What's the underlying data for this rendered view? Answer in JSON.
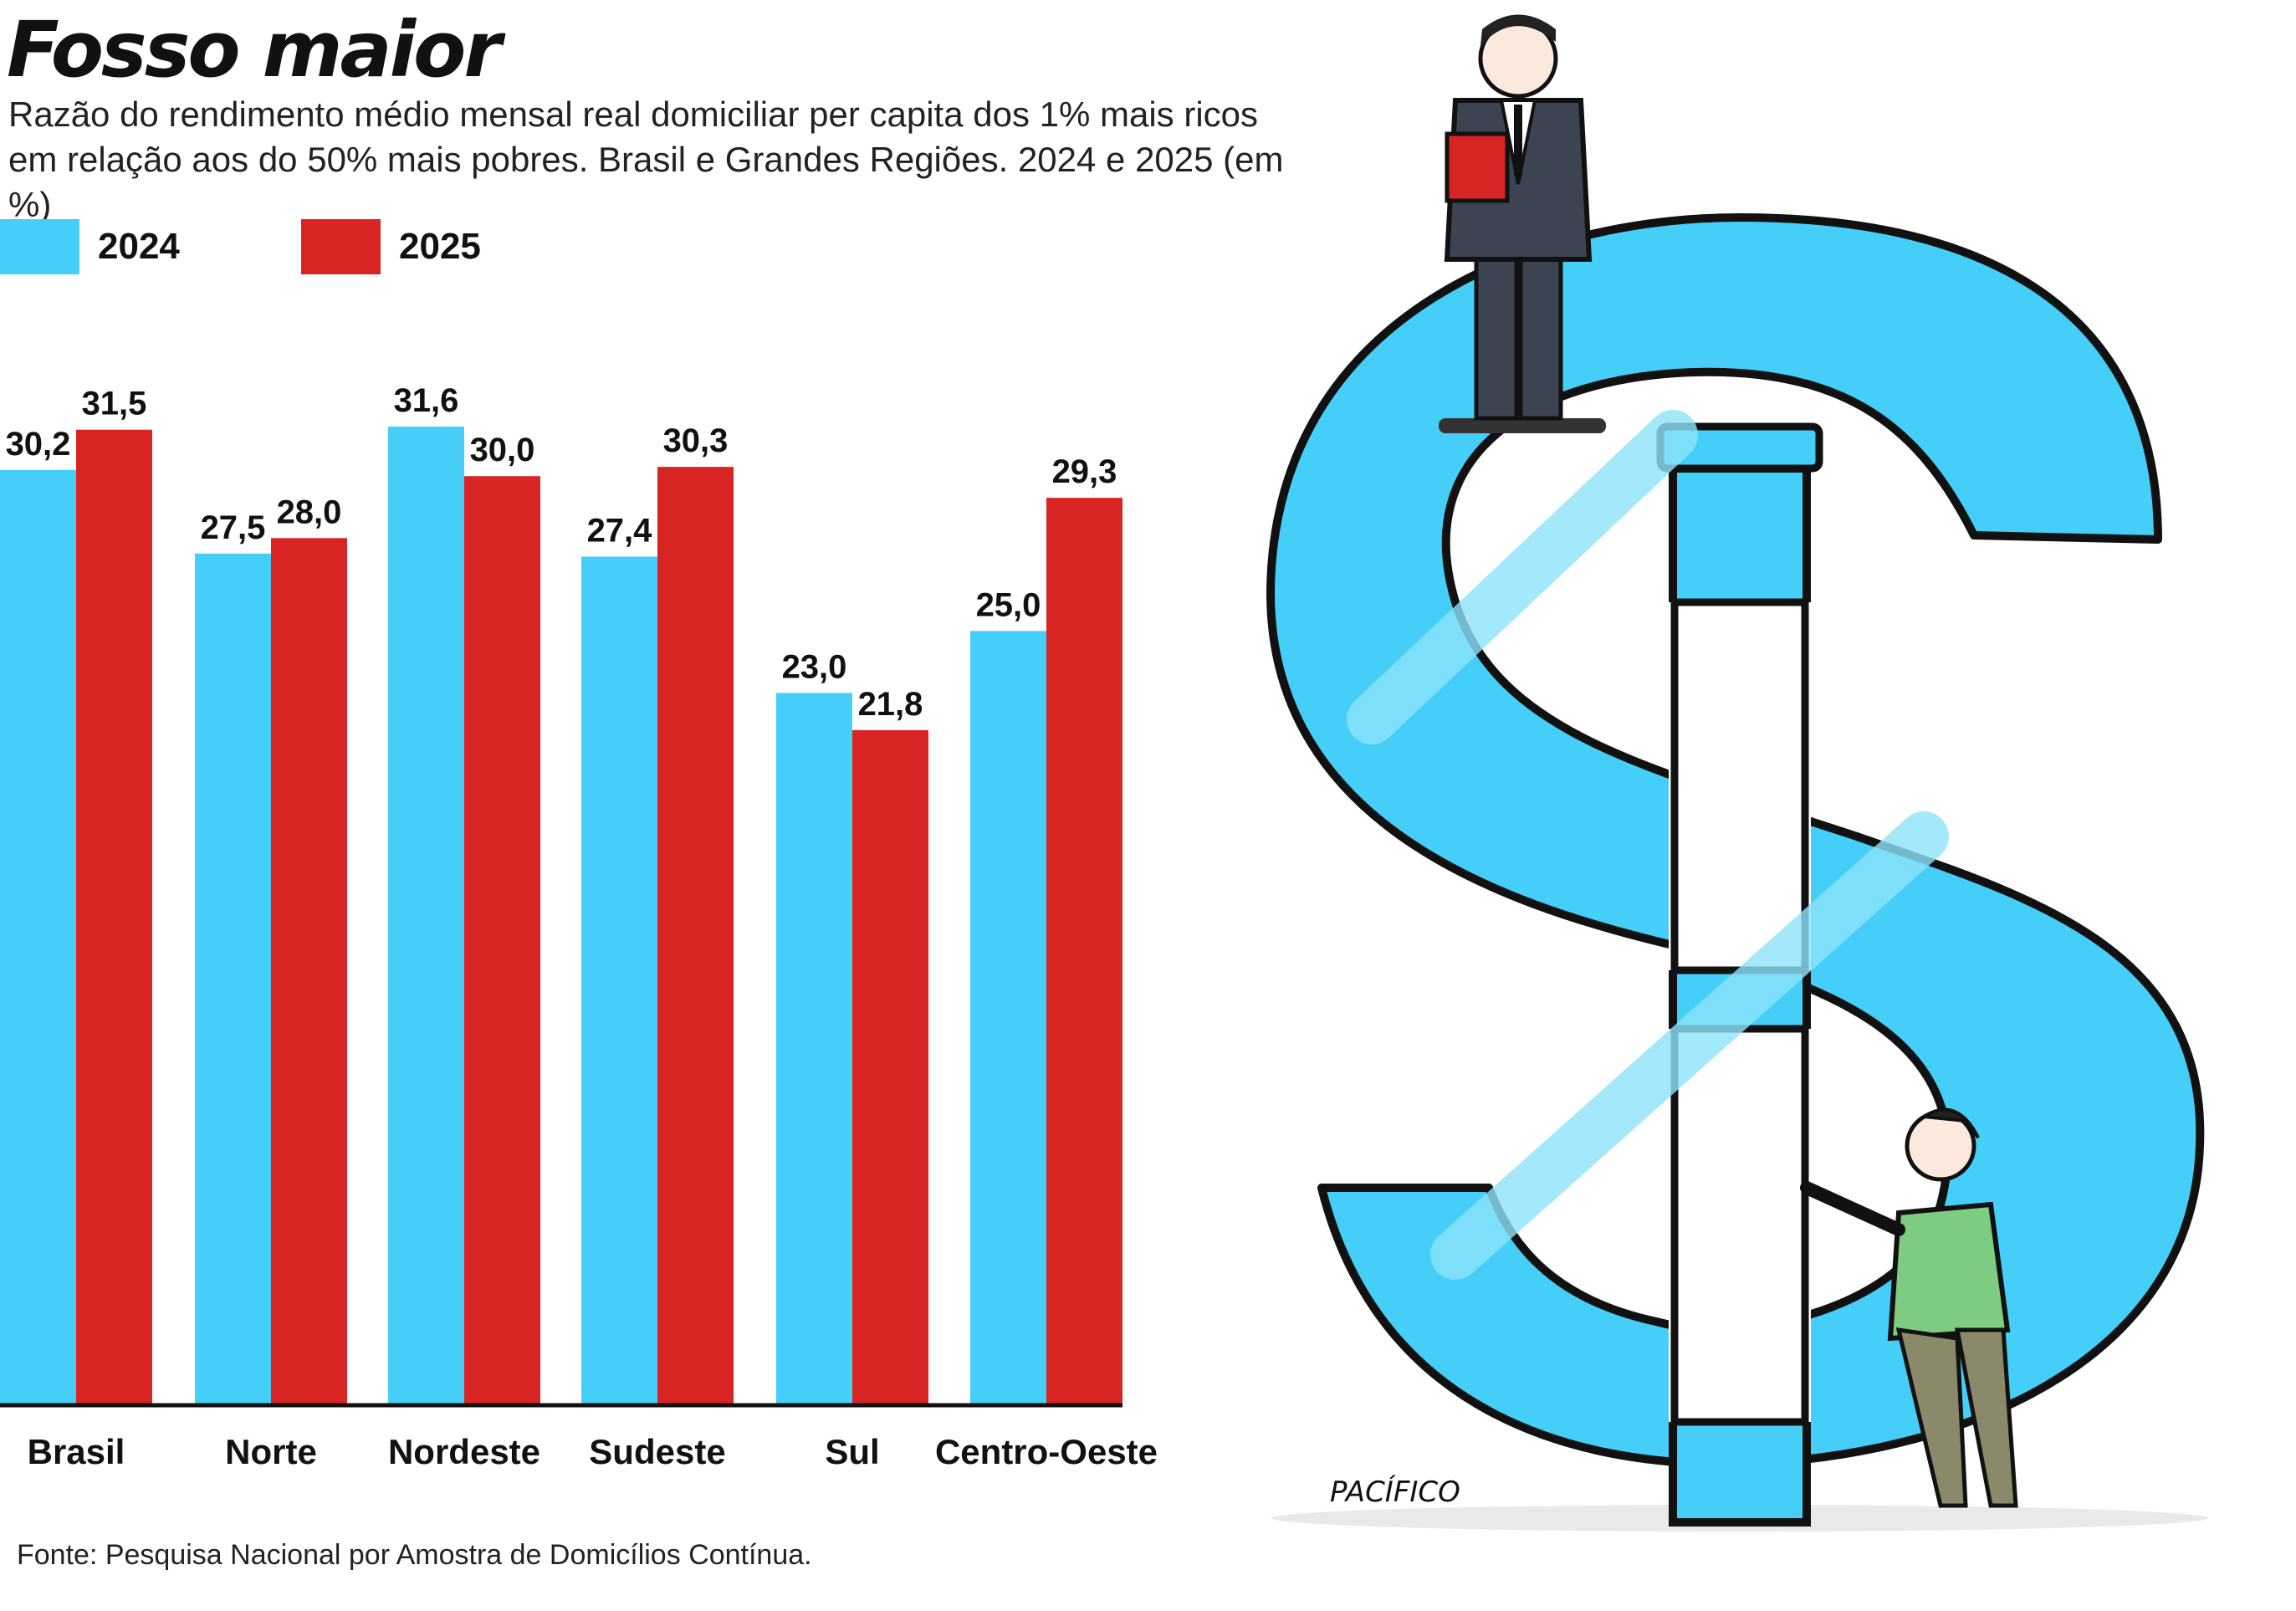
{
  "title": "Fosso maior",
  "subtitle_line1": "Razão do rendimento médio mensal real domiciliar per capita dos 1% mais ricos",
  "subtitle_line2": "em relação aos do 50% mais pobres. Brasil e Grandes Regiões. 2024 e 2025 (em %)",
  "source": "Fonte: Pesquisa Nacional por Amostra de Domicílios Contínua.",
  "cartoon_signature": "PACÍFICO",
  "colors": {
    "series_2024": "#45cff8",
    "series_2025": "#d92424",
    "axis": "#111111"
  },
  "chart_data": {
    "type": "bar",
    "categories": [
      "Brasil",
      "Norte",
      "Nordeste",
      "Sudeste",
      "Sul",
      "Centro-Oeste"
    ],
    "series": [
      {
        "name": "2024",
        "values": [
          30.2,
          27.5,
          31.6,
          27.4,
          23.0,
          25.0
        ],
        "labels": [
          "30,2",
          "27,5",
          "31,6",
          "27,4",
          "23,0",
          "25,0"
        ]
      },
      {
        "name": "2025",
        "values": [
          31.5,
          28.0,
          30.0,
          30.3,
          21.8,
          29.3
        ],
        "labels": [
          "31,5",
          "28,0",
          "30,0",
          "30,3",
          "21,8",
          "29,3"
        ]
      }
    ],
    "legend_position": "top-left",
    "grid": false,
    "ylim": [
      0,
      31.6
    ]
  }
}
